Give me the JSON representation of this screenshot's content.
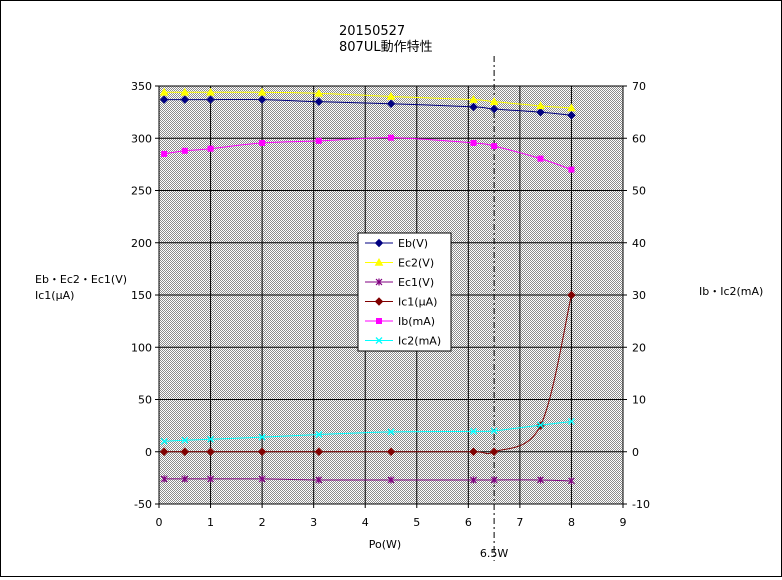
{
  "chart_data": {
    "type": "line",
    "title": "20150527",
    "subtitle": "807UL動作特性",
    "xlabel": "Po(W)",
    "ylabel_left_line1": "Eb・Ec2・Ec1(V)",
    "ylabel_left_line2": "Ic1(μA)",
    "ylabel_right": "Ib・Ic2(mA)",
    "xlim": [
      0,
      9
    ],
    "ylim_left": [
      -50,
      350
    ],
    "ylim_right": [
      -10,
      70
    ],
    "x_ticks": [
      "0",
      "1",
      "2",
      "3",
      "4",
      "5",
      "6",
      "7",
      "8",
      "9"
    ],
    "y_left_ticks": [
      "350",
      "300",
      "250",
      "200",
      "150",
      "100",
      "50",
      "0",
      "-50"
    ],
    "y_right_ticks": [
      "70",
      "60",
      "50",
      "40",
      "30",
      "20",
      "10",
      "0",
      "-10"
    ],
    "grid": true,
    "legend_position": "center-left",
    "annotation": {
      "label": "6.5W",
      "x": 6.5
    },
    "x": [
      0.1,
      0.5,
      1,
      2,
      3.1,
      4.5,
      6.1,
      6.5,
      7.4,
      8
    ],
    "series": [
      {
        "name": "Eb(V)",
        "axis": "left",
        "color": "#000080",
        "marker": "diamond",
        "values": [
          337,
          337,
          337,
          337,
          335,
          333,
          330,
          328,
          325,
          322
        ]
      },
      {
        "name": "Ec2(V)",
        "axis": "left",
        "color": "#ffff00",
        "marker": "triangle",
        "values": [
          344,
          344,
          344,
          344,
          343,
          340,
          337,
          335,
          331,
          329
        ]
      },
      {
        "name": "Ec1(V)",
        "axis": "left",
        "color": "#800080",
        "marker": "star",
        "values": [
          -26,
          -26,
          -26,
          -26,
          -27,
          -27,
          -27,
          -27,
          -27,
          -28
        ]
      },
      {
        "name": "Ic1(μA)",
        "axis": "left",
        "color": "#800000",
        "marker": "diamond",
        "values": [
          0,
          0,
          0,
          0,
          0,
          0,
          0,
          0,
          25,
          150
        ]
      },
      {
        "name": "Ib(mA)",
        "axis": "right",
        "color": "#ff00ff",
        "marker": "square",
        "values": [
          57,
          57.6,
          58,
          59.1,
          59.5,
          60.1,
          59.1,
          58.5,
          56.1,
          54
        ]
      },
      {
        "name": "Ic2(mA)",
        "axis": "right",
        "color": "#00ffff",
        "marker": "x",
        "values": [
          2,
          2.2,
          2.4,
          2.8,
          3.3,
          3.8,
          3.9,
          4.0,
          5.1,
          5.8
        ]
      }
    ]
  }
}
